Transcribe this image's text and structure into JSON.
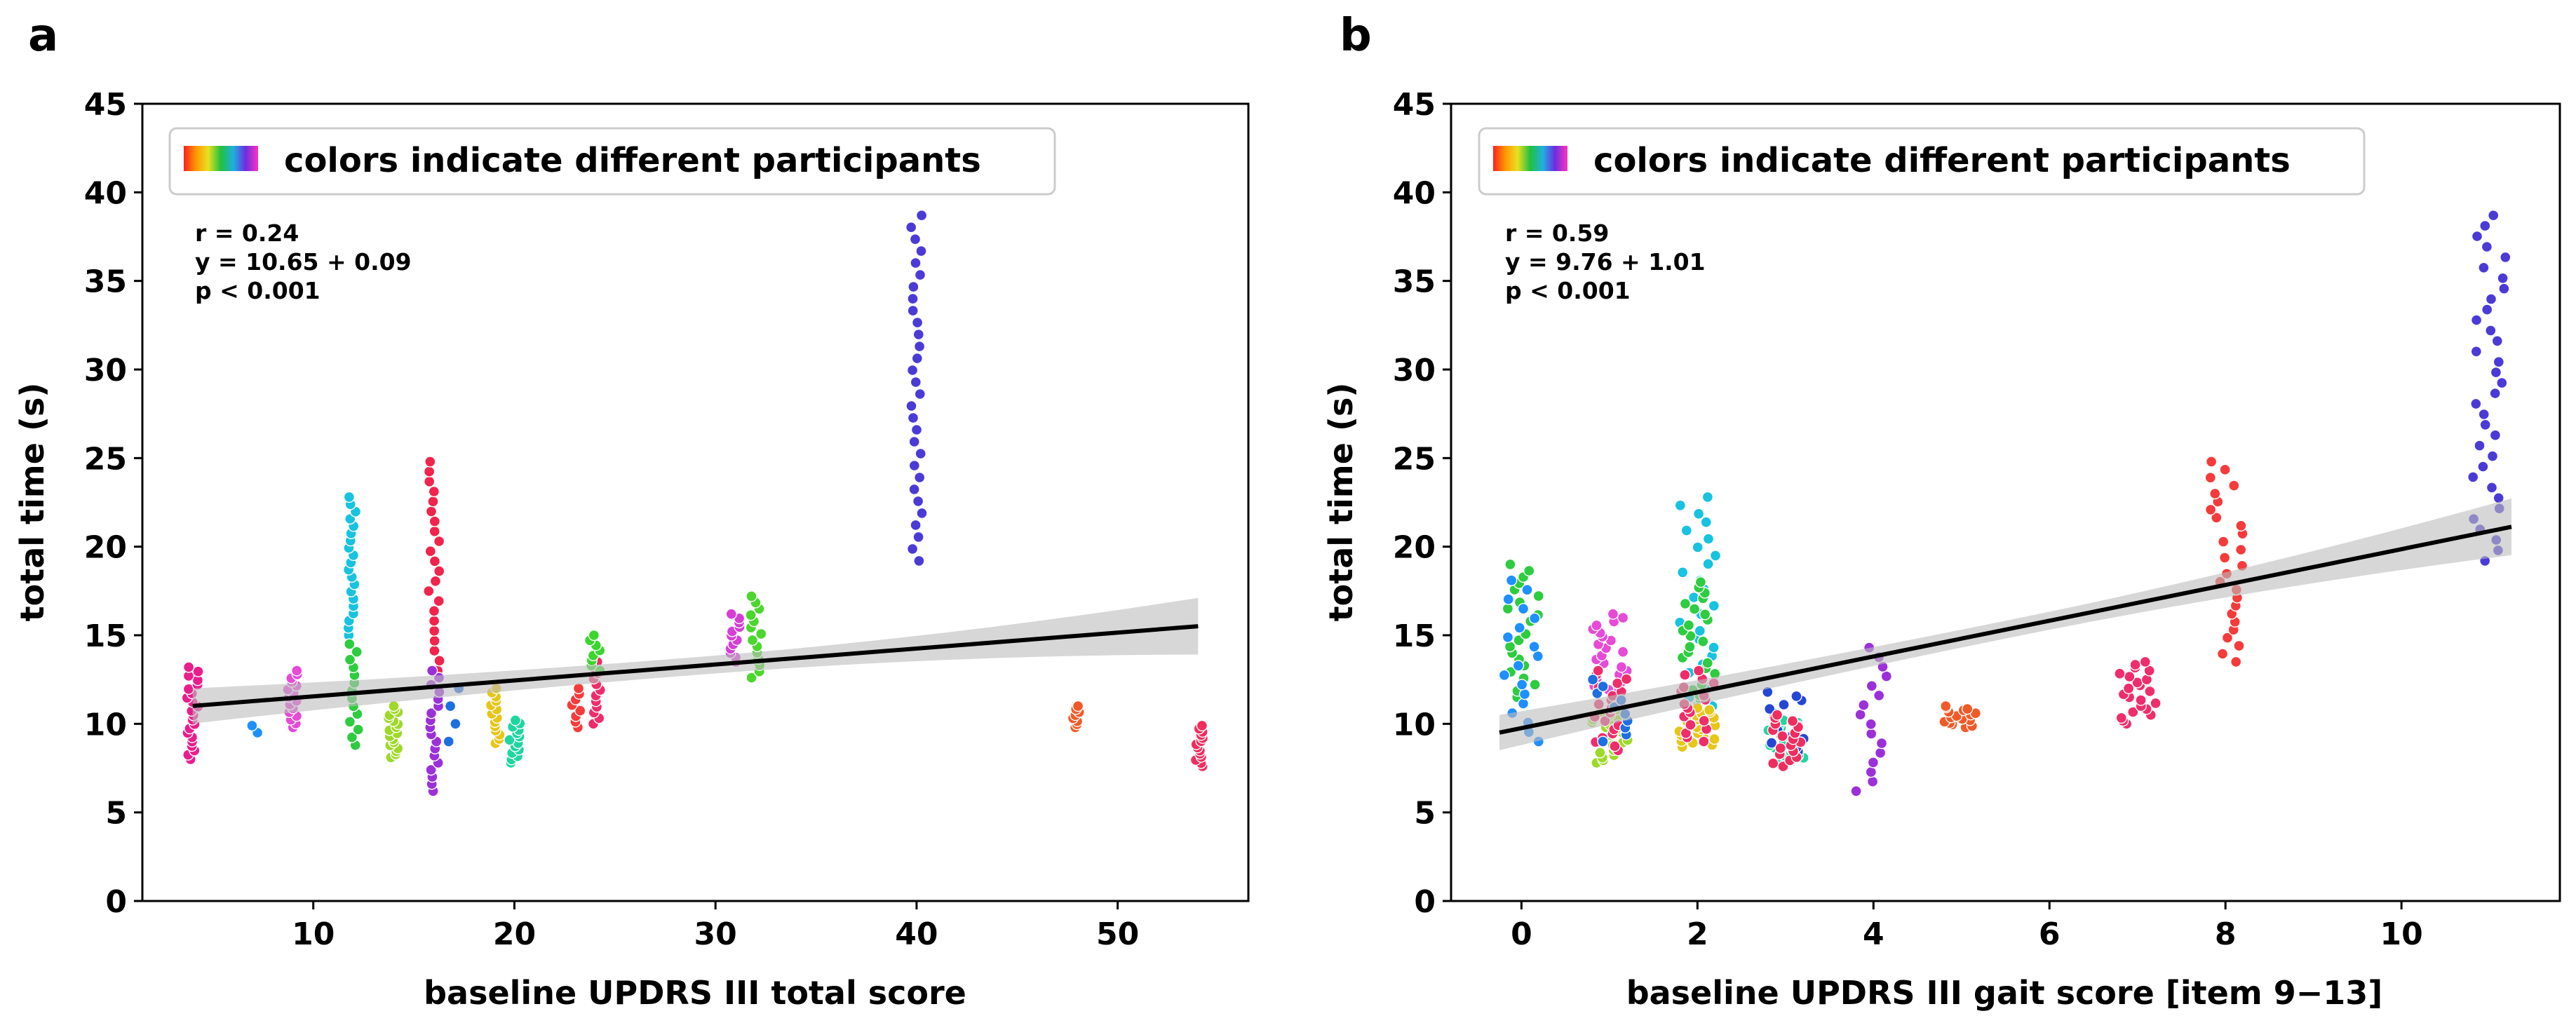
{
  "legend_text": "colors indicate different participants",
  "chart_data": [
    {
      "type": "scatter",
      "panel_label": "a",
      "xlabel": "baseline UPDRS III total score",
      "ylabel": "total time (s)",
      "xlim": [
        1.5,
        56.5
      ],
      "ylim": [
        0,
        45
      ],
      "xticks": [
        10,
        20,
        30,
        40,
        50
      ],
      "yticks": [
        0,
        5,
        10,
        15,
        20,
        25,
        30,
        35,
        40,
        45
      ],
      "annotation": [
        "r = 0.24",
        "y = 10.65 + 0.09",
        "p < 0.001"
      ],
      "fit": {
        "intercept": 10.65,
        "slope": 0.09,
        "x_range": [
          4,
          54
        ],
        "ci_halfwidth_at_ends": [
          0.5,
          1.6
        ]
      },
      "participants": [
        {
          "x": 4,
          "ymin": 8.0,
          "ymax": 13.2,
          "n": 22,
          "color": "#e91e8c"
        },
        {
          "x": 7,
          "ymin": 9.5,
          "ymax": 9.9,
          "n": 2,
          "color": "#1e90ff"
        },
        {
          "x": 9,
          "ymin": 9.8,
          "ymax": 13.0,
          "n": 16,
          "color": "#e64ad6"
        },
        {
          "x": 12,
          "ymin": 15.0,
          "ymax": 22.8,
          "n": 20,
          "color": "#17c3e0"
        },
        {
          "x": 12,
          "ymin": 8.8,
          "ymax": 14.5,
          "n": 14,
          "color": "#2ecc40"
        },
        {
          "x": 14,
          "ymin": 8.1,
          "ymax": 11.0,
          "n": 18,
          "color": "#9ed92a"
        },
        {
          "x": 16,
          "ymin": 13.0,
          "ymax": 24.8,
          "n": 22,
          "color": "#f0244c"
        },
        {
          "x": 16,
          "ymin": 6.2,
          "ymax": 13.0,
          "n": 18,
          "color": "#9b30d9"
        },
        {
          "x": 17,
          "ymin": 9.0,
          "ymax": 12.0,
          "n": 4,
          "color": "#1e6fe0"
        },
        {
          "x": 19,
          "ymin": 8.9,
          "ymax": 12.0,
          "n": 14,
          "color": "#e6c619"
        },
        {
          "x": 20,
          "ymin": 7.8,
          "ymax": 10.2,
          "n": 14,
          "color": "#1fd6a0"
        },
        {
          "x": 23,
          "ymin": 9.8,
          "ymax": 12.0,
          "n": 8,
          "color": "#f53b3b"
        },
        {
          "x": 24,
          "ymin": 10.0,
          "ymax": 13.5,
          "n": 12,
          "color": "#ef2d6a"
        },
        {
          "x": 24,
          "ymin": 13.0,
          "ymax": 15.0,
          "n": 8,
          "color": "#3bd62e"
        },
        {
          "x": 31,
          "ymin": 13.5,
          "ymax": 16.2,
          "n": 12,
          "color": "#d63ed6"
        },
        {
          "x": 32,
          "ymin": 12.6,
          "ymax": 17.2,
          "n": 14,
          "color": "#4cd62e"
        },
        {
          "x": 40,
          "ymin": 19.2,
          "ymax": 38.7,
          "n": 30,
          "color": "#4b3bd6"
        },
        {
          "x": 48,
          "ymin": 9.8,
          "ymax": 11.0,
          "n": 8,
          "color": "#f05a28"
        },
        {
          "x": 54,
          "ymin": 7.6,
          "ymax": 9.9,
          "n": 14,
          "color": "#ef2d5e"
        }
      ]
    },
    {
      "type": "scatter",
      "panel_label": "b",
      "xlabel": "baseline UPDRS III gait score [item 9−13]",
      "ylabel": "total time (s)",
      "xlim": [
        -0.8,
        11.8
      ],
      "ylim": [
        0,
        45
      ],
      "xticks": [
        0,
        2,
        4,
        6,
        8,
        10
      ],
      "yticks": [
        0,
        5,
        10,
        15,
        20,
        25,
        30,
        35,
        40,
        45
      ],
      "annotation": [
        "r = 0.59",
        "y = 9.76 + 1.01",
        "p < 0.001"
      ],
      "fit": {
        "intercept": 9.76,
        "slope": 1.01,
        "x_range": [
          -0.25,
          11.25
        ],
        "ci_halfwidth_at_ends": [
          0.5,
          1.6
        ]
      },
      "participants": [
        {
          "x": 0,
          "ymin": 11.5,
          "ymax": 19.0,
          "n": 22,
          "color": "#2ecc40"
        },
        {
          "x": 0,
          "ymin": 9.0,
          "ymax": 18.1,
          "n": 18,
          "color": "#1e90ff"
        },
        {
          "x": 1,
          "ymin": 10.0,
          "ymax": 16.2,
          "n": 30,
          "color": "#e64ad6"
        },
        {
          "x": 1,
          "ymin": 7.8,
          "ymax": 10.8,
          "n": 22,
          "color": "#9ed92a"
        },
        {
          "x": 1,
          "ymin": 8.5,
          "ymax": 13.0,
          "n": 20,
          "color": "#ef2d6a"
        },
        {
          "x": 1,
          "ymin": 9.0,
          "ymax": 12.5,
          "n": 10,
          "color": "#1e6fe0"
        },
        {
          "x": 2,
          "ymin": 11.0,
          "ymax": 22.8,
          "n": 26,
          "color": "#17c3e0"
        },
        {
          "x": 2,
          "ymin": 11.0,
          "ymax": 18.0,
          "n": 24,
          "color": "#2ecc40"
        },
        {
          "x": 2,
          "ymin": 8.7,
          "ymax": 11.0,
          "n": 22,
          "color": "#e6c619"
        },
        {
          "x": 2,
          "ymin": 9.0,
          "ymax": 13.0,
          "n": 18,
          "color": "#ef2d6a"
        },
        {
          "x": 3,
          "ymin": 7.8,
          "ymax": 10.2,
          "n": 18,
          "color": "#1fd6a0"
        },
        {
          "x": 3,
          "ymin": 8.2,
          "ymax": 11.8,
          "n": 16,
          "color": "#2447d6"
        },
        {
          "x": 3,
          "ymin": 7.6,
          "ymax": 10.5,
          "n": 18,
          "color": "#ef2d5e"
        },
        {
          "x": 4,
          "ymin": 6.2,
          "ymax": 14.3,
          "n": 16,
          "color": "#9b30d9"
        },
        {
          "x": 5,
          "ymin": 9.8,
          "ymax": 11.0,
          "n": 16,
          "color": "#f05a28"
        },
        {
          "x": 7,
          "ymin": 10.0,
          "ymax": 13.5,
          "n": 22,
          "color": "#ef2d6a"
        },
        {
          "x": 8,
          "ymin": 13.5,
          "ymax": 24.8,
          "n": 26,
          "color": "#f53b3b"
        },
        {
          "x": 11,
          "ymin": 19.2,
          "ymax": 38.7,
          "n": 34,
          "color": "#4b3bd6"
        }
      ]
    }
  ]
}
